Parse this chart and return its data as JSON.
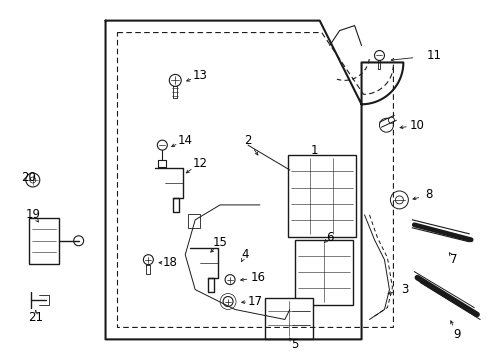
{
  "background_color": "#ffffff",
  "line_color": "#1a1a1a",
  "label_color": "#000000",
  "label_fontsize": 8.5,
  "fig_width": 4.9,
  "fig_height": 3.6,
  "dpi": 100
}
